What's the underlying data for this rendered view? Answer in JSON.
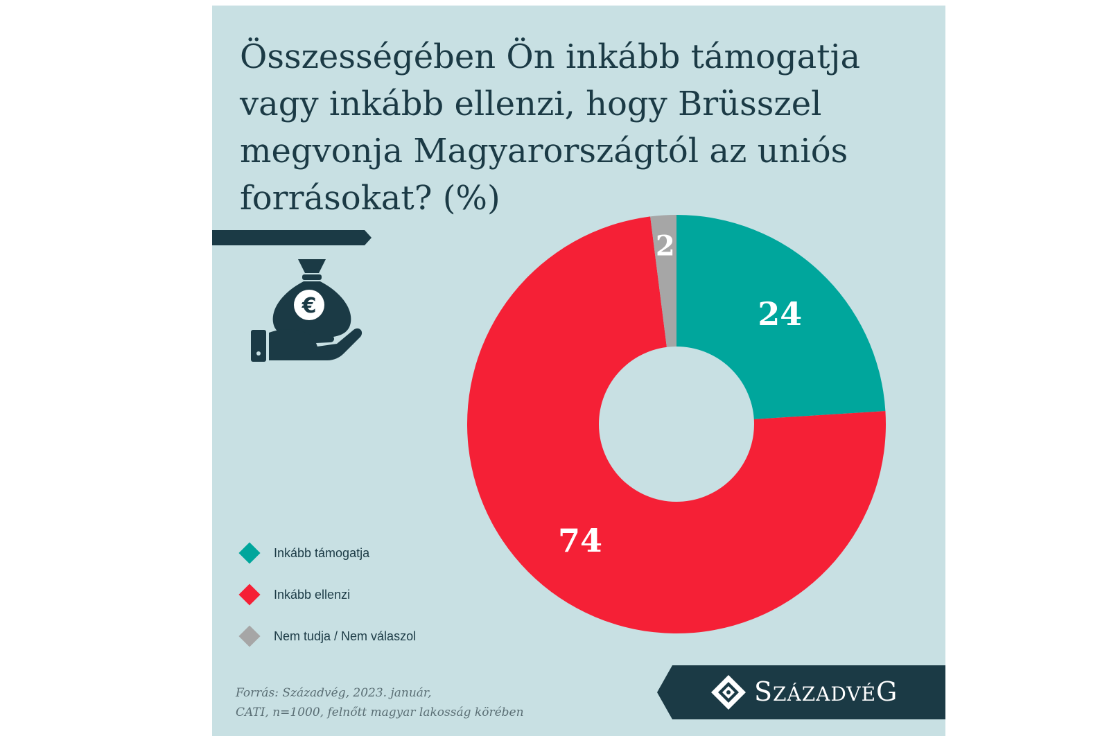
{
  "title": "Összességében Ön inkább támogatja vagy inkább ellenzi, hogy Brüsszel megvonja Magyarországtól az uniós forrásokat? (%)",
  "icon": "money-bag-euro-hand-icon",
  "colors": {
    "background": "#c8e0e3",
    "dark": "#1b3a45",
    "support": "#00a69c",
    "oppose": "#f52036",
    "unknown": "#a6a6a6"
  },
  "chart_data": {
    "type": "pie",
    "variant": "donut",
    "title": "Összességében Ön inkább támogatja vagy inkább ellenzi, hogy Brüsszel megvonja Magyarországtól az uniós forrásokat? (%)",
    "categories": [
      "Inkább támogatja",
      "Inkább ellenzi",
      "Nem tudja / Nem válaszol"
    ],
    "values": [
      24,
      74,
      2
    ],
    "data_labels": [
      "24",
      "74",
      "2"
    ],
    "unit": "%",
    "legend_placement": "bottom-left"
  },
  "source": {
    "line1": "Forrás: Századvég, 2023. január,",
    "line2": "CATI, n=1000, felnőtt magyar lakosság körében"
  },
  "logo": {
    "brand_first": "S",
    "brand_small1": "ZÁZADV",
    "brand_mid": "É",
    "brand_last": "G",
    "icon": "diamond-emblem-icon"
  }
}
